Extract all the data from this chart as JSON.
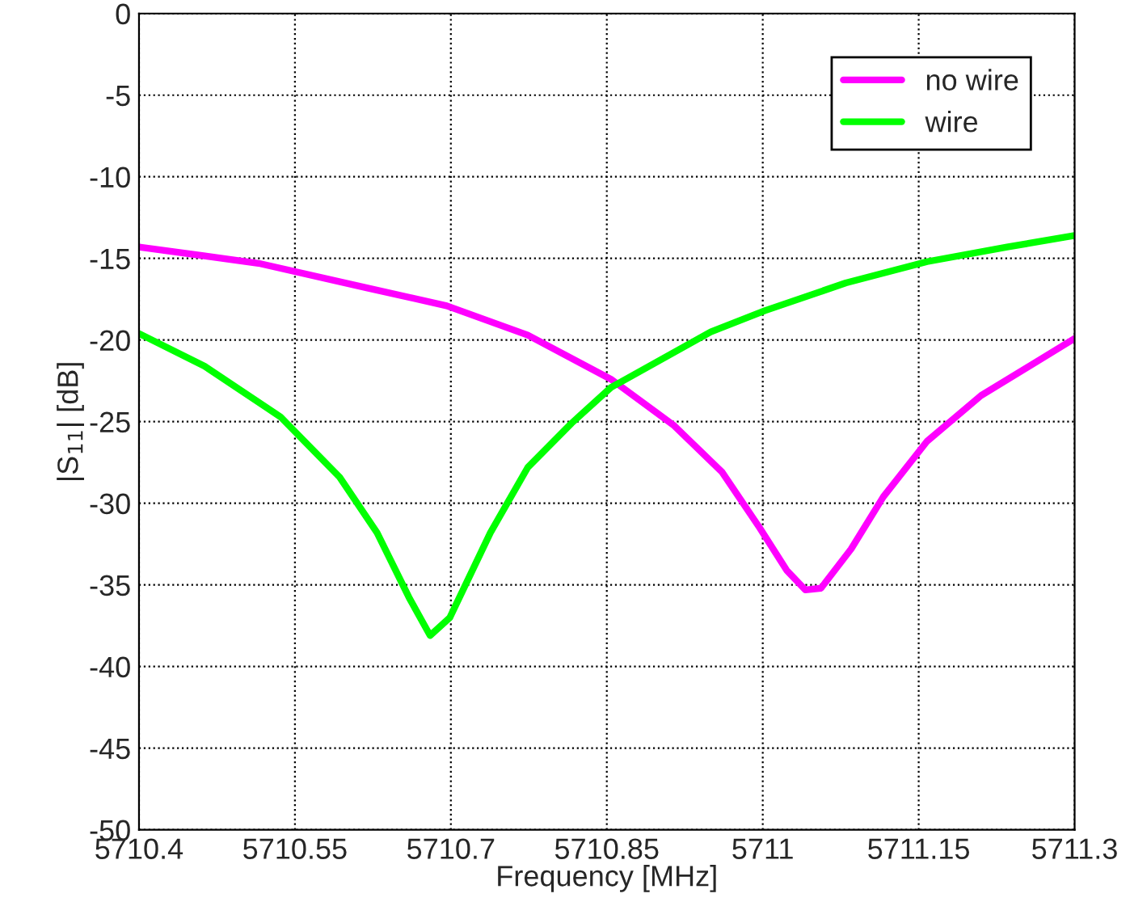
{
  "chart_data": {
    "type": "line",
    "xlabel": "Frequency [MHz]",
    "ylabel": "|S$_{11}$| [dB]",
    "xlim": [
      5710.4,
      5711.3
    ],
    "xticks": [
      5710.4,
      5710.55,
      5710.7,
      5710.85,
      5711,
      5711.15,
      5711.3
    ],
    "ylim": [
      -50,
      0
    ],
    "yticks": [
      -50,
      -45,
      -40,
      -35,
      -30,
      -25,
      -20,
      -15,
      -10,
      -5,
      0
    ],
    "grid": true,
    "legend": "top right",
    "line_style": "solid",
    "marker": "none",
    "series": [
      {
        "name": "no wire",
        "color": "#ff00ff",
        "x": [
          5710.4,
          5710.515,
          5710.619,
          5710.696,
          5710.774,
          5710.854,
          5710.914,
          5710.961,
          5710.997,
          5711.023,
          5711.041,
          5711.056,
          5711.085,
          5711.116,
          5711.158,
          5711.21,
          5711.3
        ],
        "values": [
          -14.3,
          -15.3,
          -16.8,
          -17.9,
          -19.7,
          -22.4,
          -25.2,
          -28.1,
          -31.5,
          -34.1,
          -35.3,
          -35.2,
          -32.8,
          -29.6,
          -26.2,
          -23.4,
          -19.9
        ]
      },
      {
        "name": "wire",
        "color": "#00ff00",
        "x": [
          5710.4,
          5710.463,
          5710.536,
          5710.593,
          5710.629,
          5710.66,
          5710.68,
          5710.699,
          5710.738,
          5710.774,
          5710.816,
          5710.854,
          5710.95,
          5711.002,
          5711.08,
          5711.158,
          5711.235,
          5711.3
        ],
        "values": [
          -19.6,
          -21.6,
          -24.7,
          -28.4,
          -31.8,
          -35.8,
          -38.1,
          -37.0,
          -31.8,
          -27.8,
          -25.1,
          -22.9,
          -19.5,
          -18.2,
          -16.5,
          -15.2,
          -14.3,
          -13.6
        ]
      }
    ]
  }
}
